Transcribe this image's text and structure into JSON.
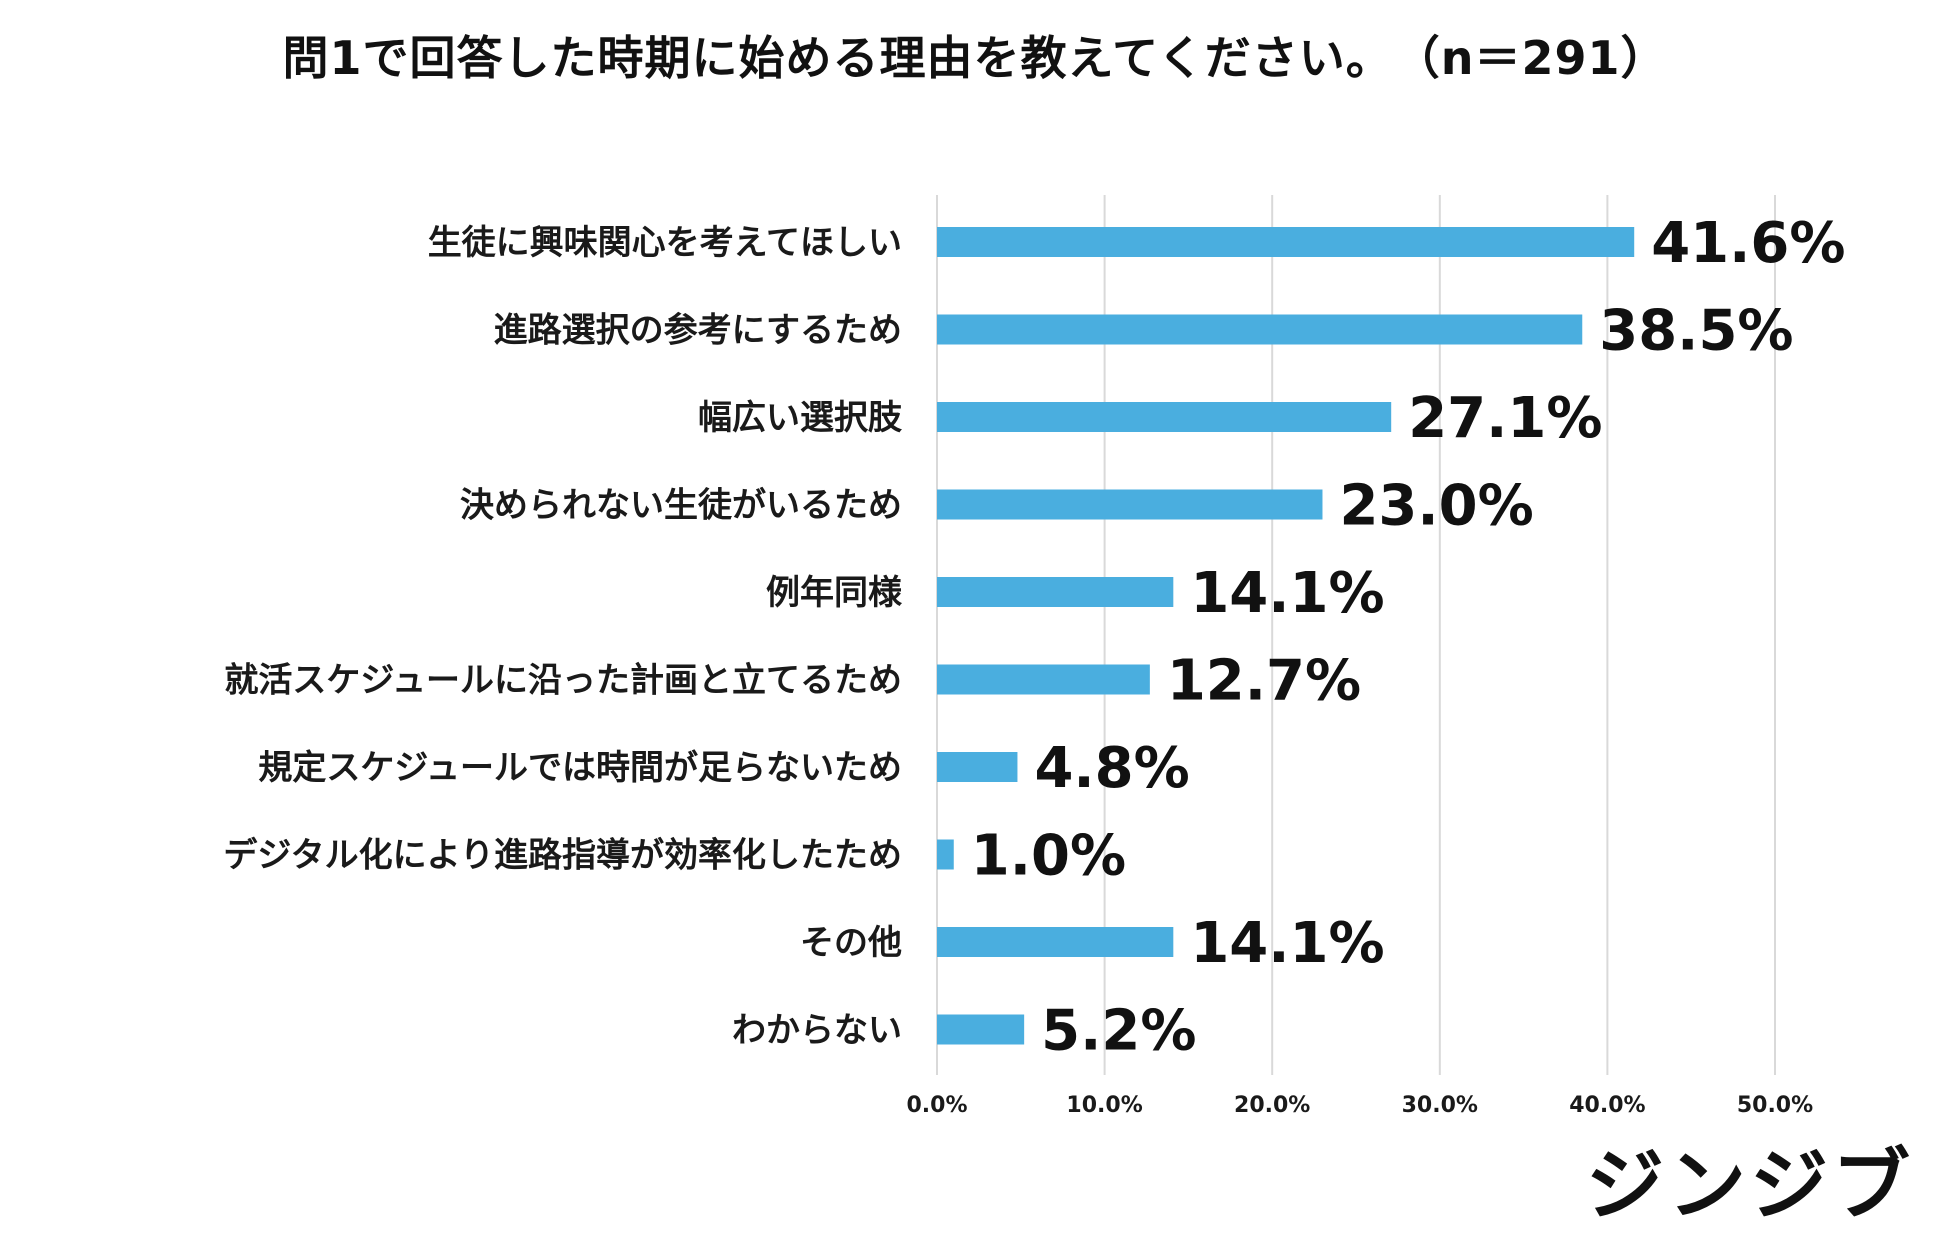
{
  "chart_data": {
    "type": "bar",
    "orientation": "horizontal",
    "title": "問1で回答した時期に始める理由を教えてください。",
    "sample_size": "（n＝291）",
    "categories": [
      "生徒に興味関心を考えてほしい",
      "進路選択の参考にするため",
      "幅広い選択肢",
      "決められない生徒がいるため",
      "例年同様",
      "就活スケジュールに沿った計画と立てるため",
      "規定スケジュールでは時間が足らないため",
      "デジタル化により進路指導が効率化したため",
      "その他",
      "わからない"
    ],
    "values": [
      41.6,
      38.5,
      27.1,
      23.0,
      14.1,
      12.7,
      4.8,
      1.0,
      14.1,
      5.2
    ],
    "value_labels": [
      "41.6%",
      "38.5%",
      "27.1%",
      "23.0%",
      "14.1%",
      "12.7%",
      "4.8%",
      "1.0%",
      "14.1%",
      "5.2%"
    ],
    "xlim": [
      0,
      50
    ],
    "xticks": [
      "0.0%",
      "10.0%",
      "20.0%",
      "30.0%",
      "40.0%",
      "50.0%"
    ],
    "grid": true,
    "bar_color": "#4AAEDF",
    "grid_color": "#D9D9D9",
    "xlabel": "",
    "ylabel": ""
  },
  "brand": {
    "logo_text": "ジンジブ"
  }
}
